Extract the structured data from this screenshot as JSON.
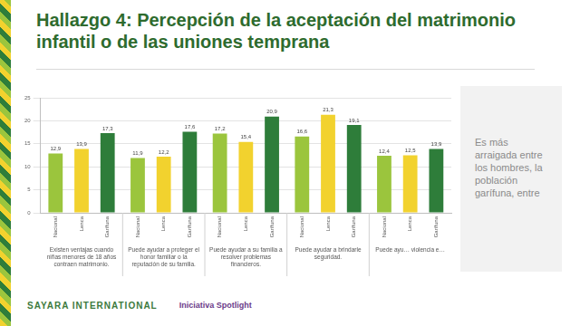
{
  "chart_data": {
    "type": "bar",
    "title": "Hallazgo 4: Percepción de la aceptación del matrimonio infantil o de las uniones temprana",
    "categories": [
      "Existen ventajas cuando niñas menores de 18 años contraen matrimonio.",
      "Puede ayudar a proteger el honor familiar o la reputación de su familia.",
      "Puede ayudar a su familia a resolver problemas financieros.",
      "Puede ayudar a brindarle seguridad.",
      "Puede ayu… violencia e…"
    ],
    "series": [
      {
        "name": "Nacional",
        "color": "#9bc53d",
        "values": [
          12.9,
          11.9,
          17.2,
          16.6,
          12.4
        ],
        "value_labels": [
          "12,9",
          "11,9",
          "17,2",
          "16,6",
          "12,4"
        ]
      },
      {
        "name": "Lenca",
        "color": "#f2d22e",
        "values": [
          13.9,
          12.2,
          15.4,
          21.3,
          12.5
        ],
        "value_labels": [
          "13,9",
          "12,2",
          "15,4",
          "21,3",
          "12,5"
        ]
      },
      {
        "name": "Garífuna",
        "color": "#2e7d3a",
        "values": [
          17.3,
          17.6,
          20.9,
          19.1,
          13.9
        ],
        "value_labels": [
          "17,3",
          "17,6",
          "20,9",
          "19,1",
          "13,9"
        ]
      }
    ],
    "ylim": [
      0,
      25
    ],
    "yticks": [
      0,
      5,
      10,
      15,
      20,
      25
    ],
    "grid": true,
    "data_labels": true
  },
  "slide": {
    "side_text": "Es más arraigada entre los hombres, la población garífuna, entre",
    "footer": [
      "SAYARA INTERNATIONAL",
      "Iniciativa Spotlight"
    ]
  }
}
